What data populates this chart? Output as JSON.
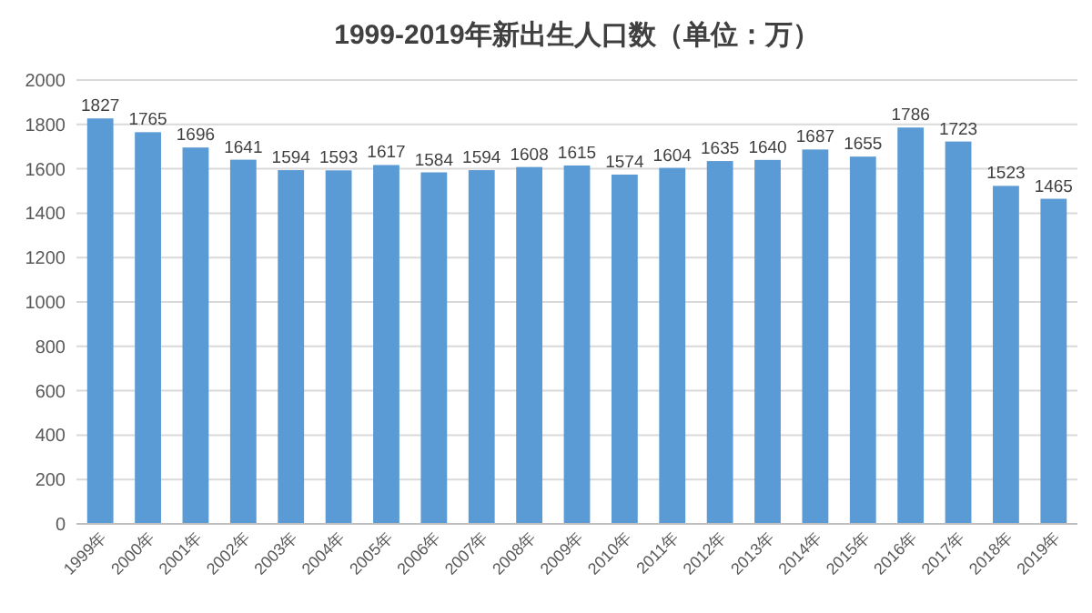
{
  "chart_data": {
    "type": "bar",
    "title": "1999-2019年新出生人口数（单位：万）",
    "categories": [
      "1999年",
      "2000年",
      "2001年",
      "2002年",
      "2003年",
      "2004年",
      "2005年",
      "2006年",
      "2007年",
      "2008年",
      "2009年",
      "2010年",
      "2011年",
      "2012年",
      "2013年",
      "2014年",
      "2015年",
      "2016年",
      "2017年",
      "2018年",
      "2019年"
    ],
    "values": [
      1827,
      1765,
      1696,
      1641,
      1594,
      1593,
      1617,
      1584,
      1594,
      1608,
      1615,
      1574,
      1604,
      1635,
      1640,
      1687,
      1655,
      1786,
      1723,
      1523,
      1465
    ],
    "color": "#5b9bd5",
    "ylim": [
      0,
      2000
    ],
    "yticks": [
      0,
      200,
      400,
      600,
      800,
      1000,
      1200,
      1400,
      1600,
      1800,
      2000
    ],
    "grid": "y",
    "data_labels": true
  }
}
